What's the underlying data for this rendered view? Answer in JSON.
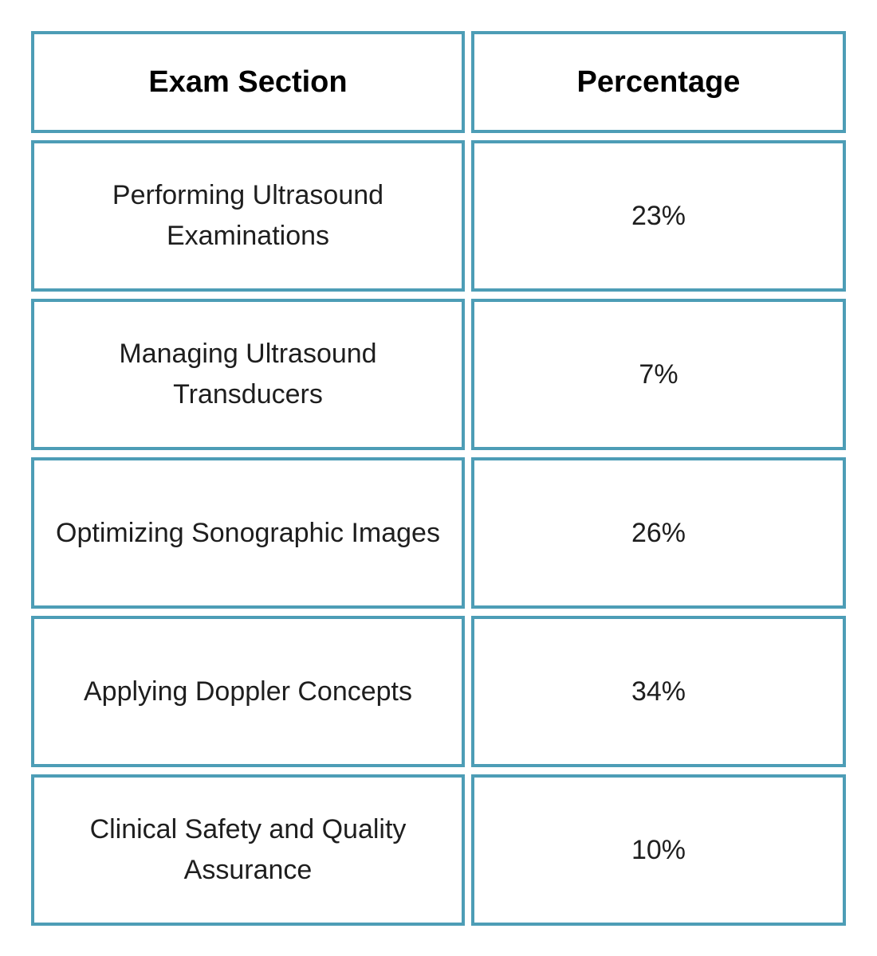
{
  "table": {
    "columns": [
      {
        "label": "Exam Section"
      },
      {
        "label": "Percentage"
      }
    ],
    "rows": [
      {
        "section": "Performing Ultrasound Examinations",
        "percentage": "23%"
      },
      {
        "section": "Managing Ultrasound Transducers",
        "percentage": "7%"
      },
      {
        "section": "Optimizing Sonographic Images",
        "percentage": "26%"
      },
      {
        "section": "Applying Doppler Concepts",
        "percentage": "34%"
      },
      {
        "section": "Clinical Safety and Quality Assurance",
        "percentage": "10%"
      }
    ]
  },
  "chart_data": {
    "type": "table",
    "columns": [
      "Exam Section",
      "Percentage"
    ],
    "categories": [
      "Performing Ultrasound Examinations",
      "Managing Ultrasound Transducers",
      "Optimizing Sonographic Images",
      "Applying Doppler Concepts",
      "Clinical Safety and Quality Assurance"
    ],
    "values": [
      23,
      7,
      26,
      34,
      10
    ],
    "unit": "%"
  },
  "colors": {
    "border": "#4D9DB6",
    "cell_background": "#FFFFFF",
    "header_text": "#000000",
    "body_text": "#1E1E1E"
  }
}
